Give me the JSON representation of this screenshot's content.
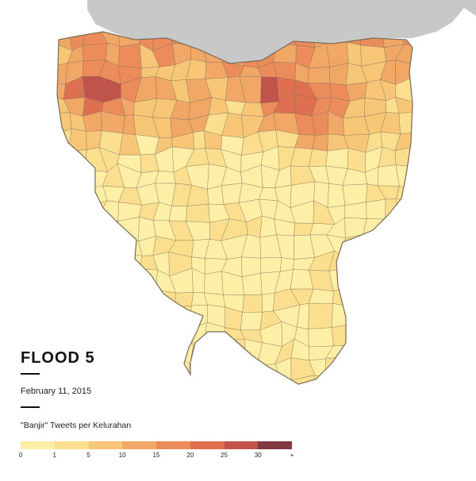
{
  "map": {
    "title": "FLOOD 5",
    "date": "February 11, 2015",
    "legend_title": "\"Banjir\" Tweets per Kelurahan",
    "legend": {
      "ticks": [
        "0",
        "1",
        "5",
        "10",
        "15",
        "20",
        "25",
        "30",
        "+"
      ],
      "colors": [
        "#fdf0a6",
        "#fcdf8e",
        "#f8c677",
        "#f1a866",
        "#ec8c5b",
        "#de6f50",
        "#c0544b",
        "#7f3a44"
      ]
    },
    "water_color": "#c8c8c8",
    "border_color": "#7a6a55"
  }
}
